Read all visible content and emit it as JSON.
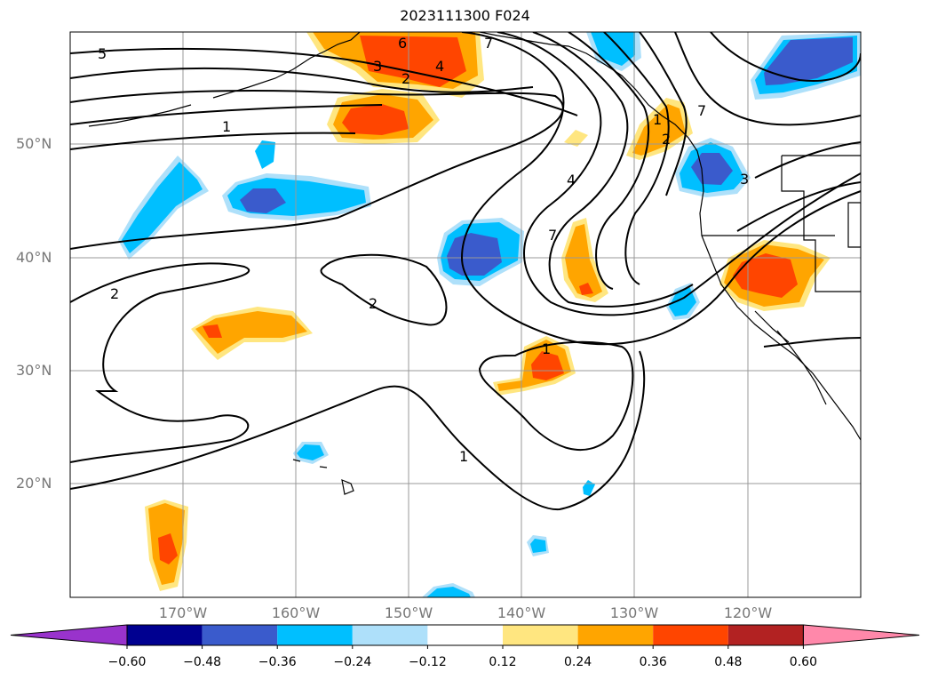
{
  "title": "2023111300 F024",
  "lat_labels": [
    "50°N",
    "40°N",
    "30°N",
    "20°N"
  ],
  "lon_labels": [
    "170°W",
    "160°W",
    "150°W",
    "140°W",
    "130°W",
    "120°W"
  ],
  "colorbar": {
    "ticks": [
      "−0.60",
      "−0.48",
      "−0.36",
      "−0.24",
      "−0.12",
      "0.12",
      "0.24",
      "0.36",
      "0.48",
      "0.60"
    ],
    "colors": [
      "#9933cc",
      "#000090",
      "#3a5bcc",
      "#00bfff",
      "#aee0fa",
      "#ffffff",
      "#ffe680",
      "#ffa500",
      "#ff4500",
      "#b22222",
      "#ff88aa"
    ]
  },
  "contour_labels": [
    "5",
    "1",
    "2",
    "2",
    "1",
    "1",
    "4",
    "7",
    "6",
    "7",
    "4",
    "3",
    "2",
    "3",
    "7",
    "1",
    "2"
  ]
}
